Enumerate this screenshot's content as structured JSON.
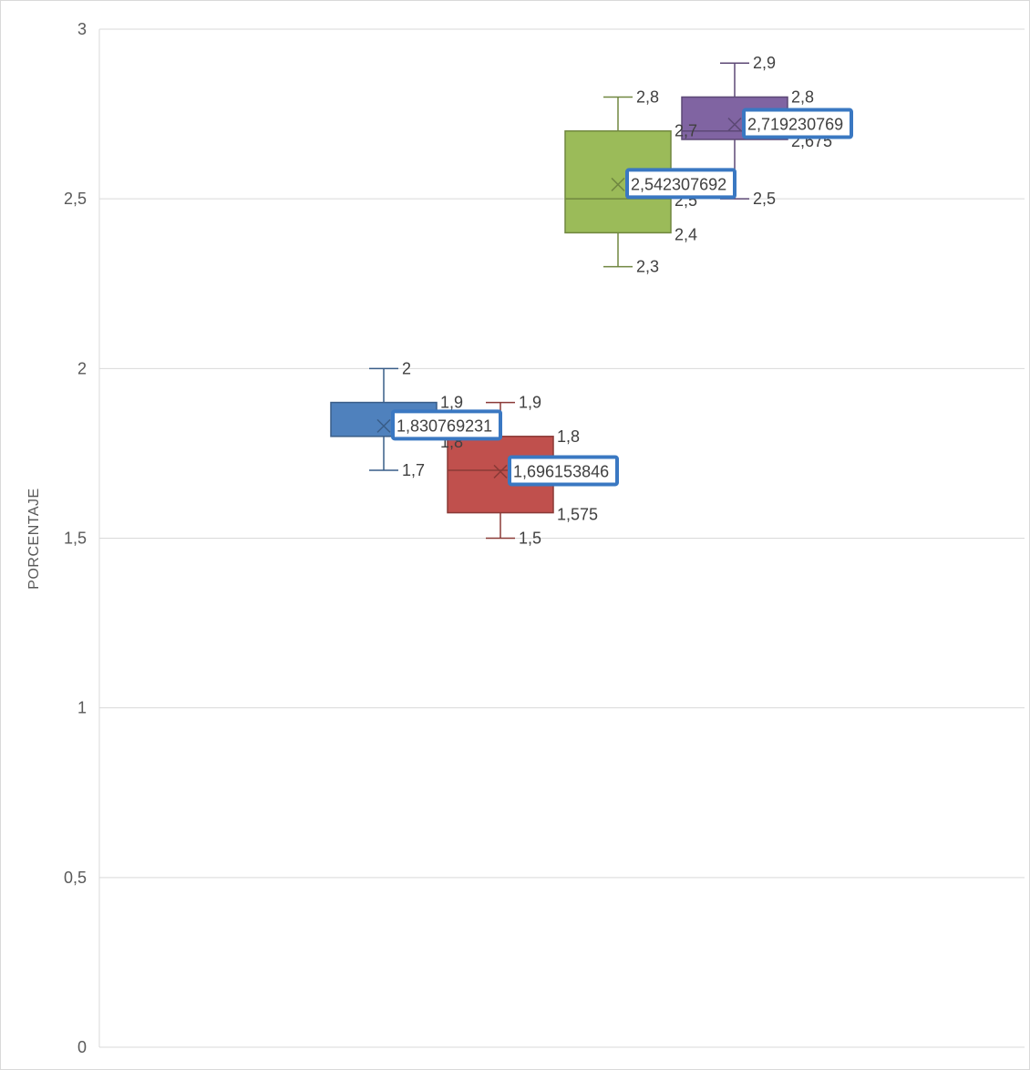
{
  "chart_data": {
    "type": "box",
    "ylabel": "PORCENTAJE",
    "ylim": [
      0,
      3
    ],
    "y_ticks": [
      "0",
      "0,5",
      "1",
      "1,5",
      "2",
      "2,5",
      "3"
    ],
    "y_tick_values": [
      0,
      0.5,
      1,
      1.5,
      2,
      2.5,
      3
    ],
    "grid": true,
    "legend": "none",
    "series": [
      {
        "color": "#4f81bd",
        "min": 1.7,
        "q1": 1.8,
        "median": 1.8,
        "q3": 1.9,
        "max": 2.0,
        "mean": 1.830769231,
        "labels": {
          "min": "1,7",
          "q1": "1,8",
          "median": "",
          "q3": "1,9",
          "max": "2",
          "mean": "1,830769231"
        }
      },
      {
        "color": "#c0504d",
        "min": 1.5,
        "q1": 1.575,
        "median": 1.7,
        "q3": 1.8,
        "max": 1.9,
        "mean": 1.696153846,
        "labels": {
          "min": "1,5",
          "q1": "1,575",
          "median": "",
          "q3": "1,8",
          "max": "1,9",
          "mean": "1,696153846"
        }
      },
      {
        "color": "#9bbb59",
        "min": 2.3,
        "q1": 2.4,
        "median": 2.5,
        "q3": 2.7,
        "max": 2.8,
        "mean": 2.542307692,
        "labels": {
          "min": "2,3",
          "q1": "2,4",
          "median": "2,5",
          "q3": "2,7",
          "max": "2,8",
          "mean": "2,542307692"
        }
      },
      {
        "color": "#8064a2",
        "min": 2.5,
        "q1": 2.675,
        "median": 2.7,
        "q3": 2.8,
        "max": 2.9,
        "mean": 2.719230769,
        "labels": {
          "min": "2,5",
          "q1": "2,675",
          "median": "",
          "q3": "2,8",
          "max": "2,9",
          "mean": "2,719230769"
        }
      }
    ]
  }
}
